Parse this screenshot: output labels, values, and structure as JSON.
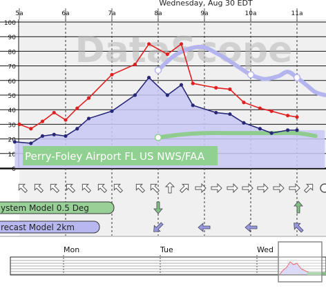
{
  "header": {
    "date_label": "Wednesday, Aug 30 EDT",
    "hour_labels": [
      "5a",
      "6a",
      "7a",
      "8a",
      "9a",
      "10a",
      "11a"
    ]
  },
  "watermark": "DataScope",
  "station_label": "Perry-Foley Airport FL US NWS/FAA",
  "model_labels": {
    "gfs": "ystem Model  0.5 Deg",
    "hrrr": "recast Model  2km"
  },
  "overview": {
    "day_labels": [
      "Mon",
      "Tue",
      "Wed"
    ]
  },
  "colors": {
    "temperature": "#e02020",
    "dewpoint": "#282878",
    "dewpoint_fill": "#c8c8f4",
    "model_purple": "#b4b4ee",
    "model_green": "#90cc90",
    "station_box": "#90d090",
    "plot_bg": "#f0f0f0"
  },
  "chart_data": {
    "type": "line",
    "title": "",
    "xlabel": "",
    "ylabel": "",
    "ylim": [
      0,
      100
    ],
    "yticks": [
      0,
      10,
      20,
      30,
      40,
      50,
      60,
      70,
      80,
      90,
      100
    ],
    "series": [
      {
        "name": "",
        "role": "temperature",
        "color": "#e02020",
        "x": [
          5.0,
          5.25,
          5.5,
          5.75,
          6.0,
          6.25,
          6.5,
          7.0,
          7.5,
          7.8,
          8.2,
          8.5,
          8.75,
          9.25,
          9.55,
          9.85,
          10.2,
          10.45,
          10.8,
          11.0
        ],
        "values": [
          30,
          27,
          32,
          38,
          33,
          41,
          48,
          64,
          71,
          85,
          78,
          85,
          58,
          55,
          54,
          45,
          41,
          39,
          36,
          35
        ]
      },
      {
        "name": "",
        "role": "dewpoint",
        "color": "#282878",
        "x": [
          4.9,
          5.25,
          5.5,
          5.75,
          6.0,
          6.25,
          6.5,
          7.0,
          7.5,
          7.8,
          8.2,
          8.5,
          8.75,
          9.25,
          9.55,
          9.85,
          10.2,
          10.45,
          10.8,
          11.0
        ],
        "values": [
          18,
          17,
          22,
          23,
          22,
          27,
          34,
          39,
          50,
          62,
          50,
          57,
          43,
          38,
          37,
          31,
          27,
          24,
          26,
          26
        ]
      },
      {
        "name": "",
        "role": "model-purple",
        "color": "#b4b4ee",
        "x": [
          8.0,
          8.4,
          8.9,
          9.3,
          9.7,
          10.0,
          10.3,
          10.6,
          10.8,
          11.0,
          11.2,
          11.4,
          11.6
        ],
        "values": [
          67,
          78,
          83,
          78,
          70,
          64,
          61,
          63,
          66,
          62,
          57,
          52,
          50
        ]
      },
      {
        "name": "",
        "role": "model-green",
        "color": "#90cc90",
        "x": [
          8.0,
          8.5,
          9.0,
          9.5,
          10.0,
          10.5,
          11.0,
          11.4
        ],
        "values": [
          21,
          23,
          24,
          24,
          24,
          24,
          24,
          22
        ]
      }
    ]
  }
}
